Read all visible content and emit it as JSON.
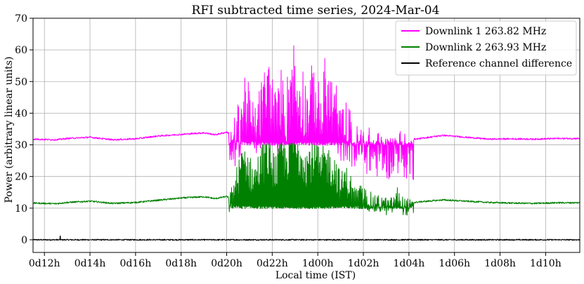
{
  "chart_data": {
    "type": "line",
    "title": "RFI subtracted time series, 2024-Mar-04",
    "xlabel": "Local time (IST)",
    "ylabel": "Power (arbitrary linear units)",
    "x_unit": "hours",
    "xlim": [
      11.5,
      35.5
    ],
    "ylim": [
      -4,
      70
    ],
    "x_ticks": [
      {
        "value": 12,
        "label": "0d12h"
      },
      {
        "value": 14,
        "label": "0d14h"
      },
      {
        "value": 16,
        "label": "0d16h"
      },
      {
        "value": 18,
        "label": "0d18h"
      },
      {
        "value": 20,
        "label": "0d20h"
      },
      {
        "value": 22,
        "label": "0d22h"
      },
      {
        "value": 24,
        "label": "1d00h"
      },
      {
        "value": 26,
        "label": "1d02h"
      },
      {
        "value": 28,
        "label": "1d04h"
      },
      {
        "value": 30,
        "label": "1d06h"
      },
      {
        "value": 32,
        "label": "1d08h"
      },
      {
        "value": 34,
        "label": "1d10h"
      }
    ],
    "y_ticks": [
      0,
      10,
      20,
      30,
      40,
      50,
      60,
      70
    ],
    "grid": true,
    "legend_position": "top-right",
    "series": [
      {
        "name": "Downlink 1 263.82 MHz",
        "color": "#ff00ff",
        "baseline": [
          [
            11.5,
            31.8
          ],
          [
            12.5,
            31.6
          ],
          [
            13.0,
            32.0
          ],
          [
            14.0,
            32.4
          ],
          [
            15.0,
            31.6
          ],
          [
            16.0,
            31.9
          ],
          [
            17.0,
            32.8
          ],
          [
            18.0,
            33.3
          ],
          [
            19.0,
            33.8
          ],
          [
            19.5,
            33.2
          ],
          [
            20.0,
            34.0
          ],
          [
            20.5,
            32.2
          ],
          [
            23.0,
            31.5
          ],
          [
            25.5,
            31.8
          ],
          [
            26.5,
            32.5
          ],
          [
            27.5,
            31.2
          ],
          [
            28.5,
            32.0
          ],
          [
            29.5,
            33.0
          ],
          [
            30.5,
            32.4
          ],
          [
            31.5,
            31.8
          ],
          [
            32.5,
            31.9
          ],
          [
            33.5,
            31.8
          ],
          [
            34.5,
            32.0
          ],
          [
            35.5,
            32.0
          ]
        ],
        "burst_start": 20.1,
        "burst_end": 28.2,
        "burst_floor": 29.8,
        "burst_peaks": [
          [
            20.1,
            34.0
          ],
          [
            20.4,
            40.0
          ],
          [
            20.6,
            47.0
          ],
          [
            20.8,
            55.0
          ],
          [
            21.0,
            48.0
          ],
          [
            21.2,
            43.0
          ],
          [
            21.5,
            50.0
          ],
          [
            21.8,
            60.0
          ],
          [
            22.0,
            53.0
          ],
          [
            22.2,
            46.0
          ],
          [
            22.4,
            55.0
          ],
          [
            22.6,
            49.0
          ],
          [
            22.9,
            67.0
          ],
          [
            23.1,
            54.0
          ],
          [
            23.3,
            58.0
          ],
          [
            23.5,
            50.0
          ],
          [
            23.7,
            55.0
          ],
          [
            23.9,
            57.0
          ],
          [
            24.1,
            47.0
          ],
          [
            24.3,
            58.0
          ],
          [
            24.6,
            53.0
          ],
          [
            24.8,
            51.0
          ],
          [
            25.0,
            41.0
          ],
          [
            25.2,
            45.0
          ],
          [
            25.4,
            42.0
          ],
          [
            25.6,
            36.0
          ],
          [
            25.9,
            37.0
          ],
          [
            26.2,
            36.0
          ],
          [
            26.5,
            34.0
          ],
          [
            26.8,
            34.5
          ],
          [
            27.1,
            33.0
          ],
          [
            27.3,
            34.0
          ],
          [
            27.5,
            37.0
          ],
          [
            27.7,
            34.0
          ],
          [
            28.0,
            33.0
          ],
          [
            28.2,
            32.5
          ]
        ]
      },
      {
        "name": "Downlink 2 263.93 MHz",
        "color": "#008000",
        "baseline": [
          [
            11.5,
            11.6
          ],
          [
            12.5,
            11.4
          ],
          [
            13.0,
            11.8
          ],
          [
            14.0,
            12.2
          ],
          [
            15.0,
            11.5
          ],
          [
            16.0,
            11.8
          ],
          [
            17.0,
            12.5
          ],
          [
            18.0,
            13.2
          ],
          [
            19.0,
            13.6
          ],
          [
            19.5,
            13.0
          ],
          [
            20.0,
            13.7
          ],
          [
            20.5,
            11.5
          ],
          [
            23.0,
            10.8
          ],
          [
            25.5,
            11.4
          ],
          [
            26.5,
            12.0
          ],
          [
            27.5,
            11.2
          ],
          [
            28.5,
            12.0
          ],
          [
            29.5,
            12.6
          ],
          [
            30.5,
            12.2
          ],
          [
            31.5,
            11.8
          ],
          [
            32.5,
            11.6
          ],
          [
            33.5,
            11.5
          ],
          [
            34.5,
            11.7
          ],
          [
            35.5,
            11.7
          ]
        ],
        "burst_start": 20.1,
        "burst_end": 28.2,
        "burst_floor": 9.8,
        "burst_peaks": [
          [
            20.1,
            14.0
          ],
          [
            20.4,
            22.0
          ],
          [
            20.6,
            28.0
          ],
          [
            20.8,
            32.0
          ],
          [
            21.0,
            27.0
          ],
          [
            21.2,
            24.0
          ],
          [
            21.5,
            30.0
          ],
          [
            21.8,
            34.0
          ],
          [
            22.0,
            30.0
          ],
          [
            22.2,
            27.0
          ],
          [
            22.4,
            37.0
          ],
          [
            22.6,
            30.0
          ],
          [
            22.9,
            42.0
          ],
          [
            23.1,
            33.0
          ],
          [
            23.3,
            35.0
          ],
          [
            23.5,
            30.0
          ],
          [
            23.7,
            32.0
          ],
          [
            23.9,
            34.0
          ],
          [
            24.1,
            27.0
          ],
          [
            24.3,
            31.0
          ],
          [
            24.6,
            29.0
          ],
          [
            24.8,
            27.0
          ],
          [
            25.0,
            21.0
          ],
          [
            25.2,
            24.0
          ],
          [
            25.4,
            22.0
          ],
          [
            25.6,
            17.0
          ],
          [
            25.9,
            17.5
          ],
          [
            26.2,
            16.0
          ],
          [
            26.5,
            14.0
          ],
          [
            26.8,
            14.5
          ],
          [
            27.1,
            13.0
          ],
          [
            27.3,
            14.0
          ],
          [
            27.5,
            17.0
          ],
          [
            27.7,
            14.0
          ],
          [
            28.0,
            13.0
          ],
          [
            28.2,
            12.5
          ]
        ]
      },
      {
        "name": "Reference channel difference",
        "color": "#000000",
        "baseline": [
          [
            11.5,
            0.0
          ],
          [
            35.5,
            0.0
          ]
        ],
        "noise": 0.4,
        "spikes": [
          [
            12.7,
            1.2
          ]
        ]
      }
    ]
  }
}
